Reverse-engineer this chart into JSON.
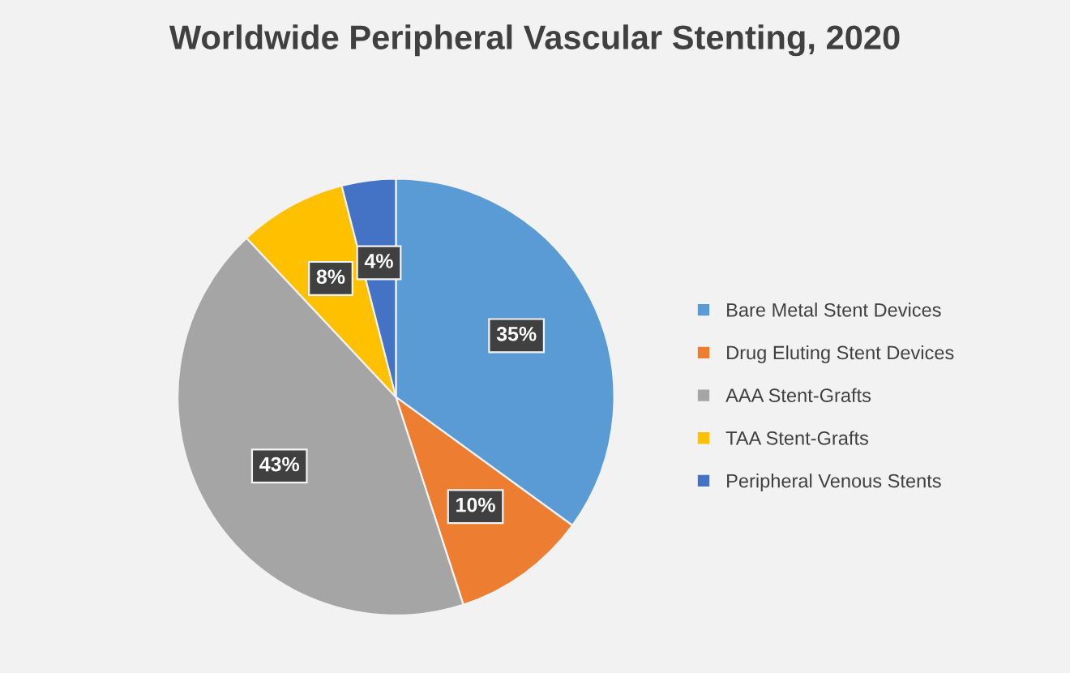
{
  "chart_data": {
    "type": "pie",
    "title": "Worldwide Peripheral Vascular Stenting, 2020",
    "categories": [
      "Bare Metal Stent Devices",
      "Drug Eluting Stent Devices",
      "AAA Stent-Grafts",
      "TAA Stent-Grafts",
      "Peripheral Venous Stents"
    ],
    "values": [
      35,
      10,
      43,
      8,
      4
    ],
    "colors": [
      "#5b9bd5",
      "#ed7d31",
      "#a5a5a5",
      "#ffc000",
      "#4472c4"
    ],
    "value_labels": [
      "35%",
      "10%",
      "43%",
      "8%",
      "4%"
    ],
    "legend": "right"
  }
}
